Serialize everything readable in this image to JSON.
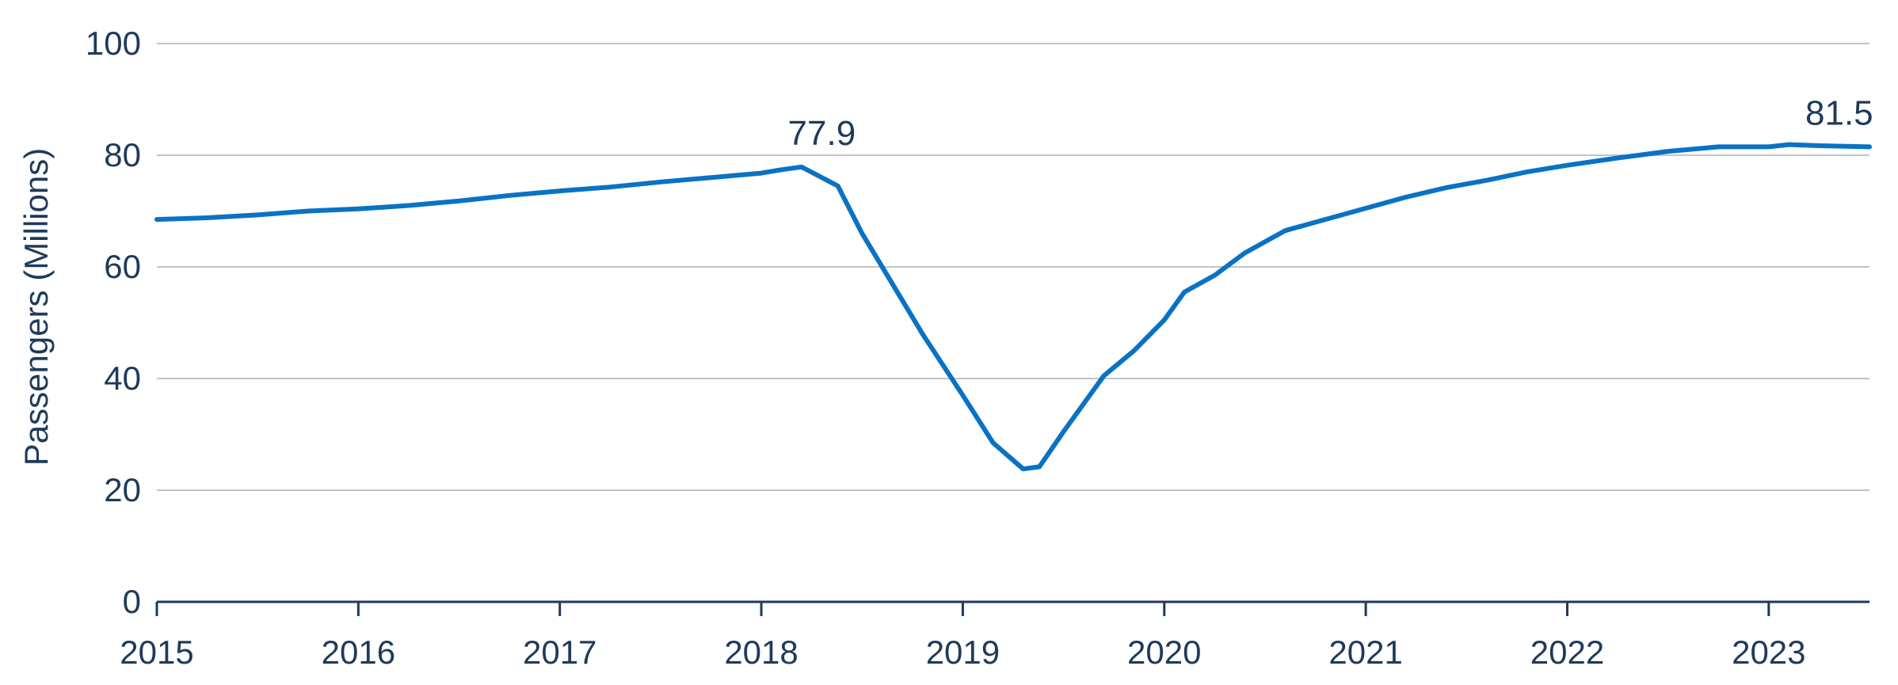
{
  "chart_data": {
    "type": "line",
    "title": "",
    "xlabel": "",
    "ylabel": "Passengers (Millions)",
    "ylim": [
      0,
      100
    ],
    "xlim": [
      2015,
      2023.5
    ],
    "yticks": [
      "0",
      "20",
      "40",
      "60",
      "80",
      "100"
    ],
    "xticks": [
      "2015",
      "2016",
      "2017",
      "2018",
      "2019",
      "2020",
      "2021",
      "2022",
      "2023"
    ],
    "grid": true,
    "line_color": "#0a72c4",
    "series": [
      {
        "x": [
          2015.0,
          2015.25,
          2015.5,
          2015.75,
          2016.0,
          2016.25,
          2016.5,
          2016.75,
          2017.0,
          2017.25,
          2017.5,
          2017.75,
          2018.0,
          2018.1,
          2018.2,
          2018.3,
          2018.38,
          2018.5,
          2018.65,
          2018.8,
          2019.0,
          2019.15,
          2019.3,
          2019.38,
          2019.5,
          2019.7,
          2019.85,
          2020.0,
          2020.1,
          2020.25,
          2020.4,
          2020.6,
          2020.75,
          2021.0,
          2021.2,
          2021.4,
          2021.6,
          2021.8,
          2022.0,
          2022.25,
          2022.5,
          2022.75,
          2023.0,
          2023.1,
          2023.25,
          2023.5
        ],
        "y": [
          68.5,
          68.8,
          69.3,
          70.0,
          70.4,
          71.0,
          71.8,
          72.8,
          73.6,
          74.3,
          75.2,
          76.0,
          76.8,
          77.4,
          77.9,
          76.0,
          74.5,
          66.0,
          57.0,
          48.0,
          37.0,
          28.5,
          23.8,
          24.2,
          30.5,
          40.5,
          45.0,
          50.5,
          55.5,
          58.5,
          62.5,
          66.5,
          68.0,
          70.5,
          72.5,
          74.2,
          75.5,
          77.0,
          78.2,
          79.5,
          80.7,
          81.5,
          81.5,
          81.9,
          81.7,
          81.5
        ]
      }
    ],
    "annotations": [
      {
        "label": "77.9",
        "x": 2018.3,
        "y": 77.9
      },
      {
        "label": "81.5",
        "x": 2023.35,
        "y": 81.5
      }
    ]
  }
}
